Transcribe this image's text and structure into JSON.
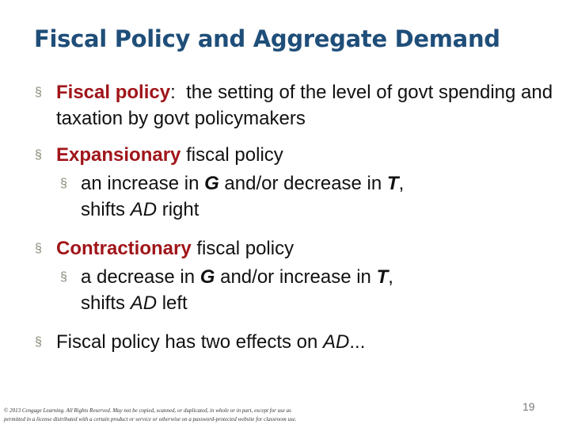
{
  "slide": {
    "title": "Fiscal Policy and Aggregate Demand",
    "bullet_glyph": "§",
    "b1": {
      "term": "Fiscal policy",
      "colon": ":",
      "text": "  the setting of the level of govt spending and taxation by govt policymakers"
    },
    "b2": {
      "term": "Expansionary",
      "rest": " fiscal policy",
      "sub": {
        "t1": "an increase in ",
        "g": "G",
        "t2": " and/or decrease in ",
        "t": "T",
        "t3": ",",
        "t4": "shifts ",
        "ad": "AD",
        "t5": " right"
      }
    },
    "b3": {
      "term": "Contractionary",
      "rest": " fiscal policy",
      "sub": {
        "t1": "a decrease in ",
        "g": "G",
        "t2": " and/or increase in ",
        "t": "T",
        "t3": ",",
        "t4": "shifts ",
        "ad": "AD",
        "t5": " left"
      }
    },
    "b4": {
      "t1": "Fiscal policy has two effects on ",
      "ad": "AD",
      "t2": "..."
    },
    "footer": {
      "line1": "© 2013 Cengage Learning. All Rights Reserved. May not be copied, scanned, or duplicated, in whole or in part, except for use as",
      "line2": "permitted in a license distributed with a certain product or service or otherwise on a password-protected website for classroom use."
    },
    "page_number": "19"
  },
  "colors": {
    "title": "#1f4e79",
    "highlight": "#a0151a",
    "bullet": "#8b8b7a"
  }
}
